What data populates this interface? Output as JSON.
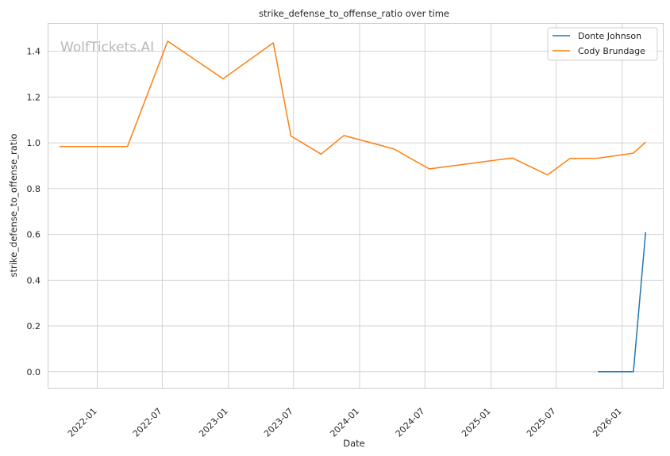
{
  "chart_data": {
    "type": "line",
    "title": "strike_defense_to_offense_ratio over time",
    "xlabel": "Date",
    "ylabel": "strike_defense_to_offense_ratio",
    "watermark": "WolfTickets.AI",
    "x_is_date": true,
    "xlim": [
      "2021-08-18",
      "2026-04-24"
    ],
    "ylim": [
      -0.07,
      1.52
    ],
    "x_ticks": [
      "2022-01",
      "2022-07",
      "2023-01",
      "2023-07",
      "2024-01",
      "2024-07",
      "2025-01",
      "2025-07",
      "2026-01"
    ],
    "y_ticks": [
      "0.0",
      "0.2",
      "0.4",
      "0.6",
      "0.8",
      "1.0",
      "1.2",
      "1.4"
    ],
    "grid": true,
    "legend_position": "top-right",
    "series": [
      {
        "name": "Donte Johnson",
        "color": "#1f77b4",
        "points": [
          [
            "2025-10-25",
            0.0
          ],
          [
            "2026-02-01",
            0.0
          ],
          [
            "2026-03-07",
            0.61
          ]
        ]
      },
      {
        "name": "Cody Brundage",
        "color": "#ff7f0e",
        "points": [
          [
            "2021-09-18",
            0.984
          ],
          [
            "2022-03-26",
            0.984
          ],
          [
            "2022-07-16",
            1.444
          ],
          [
            "2022-12-17",
            1.28
          ],
          [
            "2023-05-06",
            1.437
          ],
          [
            "2023-06-24",
            1.03
          ],
          [
            "2023-09-16",
            0.951
          ],
          [
            "2023-11-18",
            1.032
          ],
          [
            "2024-04-06",
            0.973
          ],
          [
            "2024-07-13",
            0.886
          ],
          [
            "2025-03-01",
            0.934
          ],
          [
            "2025-06-07",
            0.86
          ],
          [
            "2025-08-09",
            0.932
          ],
          [
            "2025-10-25",
            0.933
          ],
          [
            "2026-02-01",
            0.955
          ],
          [
            "2026-03-07",
            1.003
          ]
        ]
      }
    ]
  }
}
